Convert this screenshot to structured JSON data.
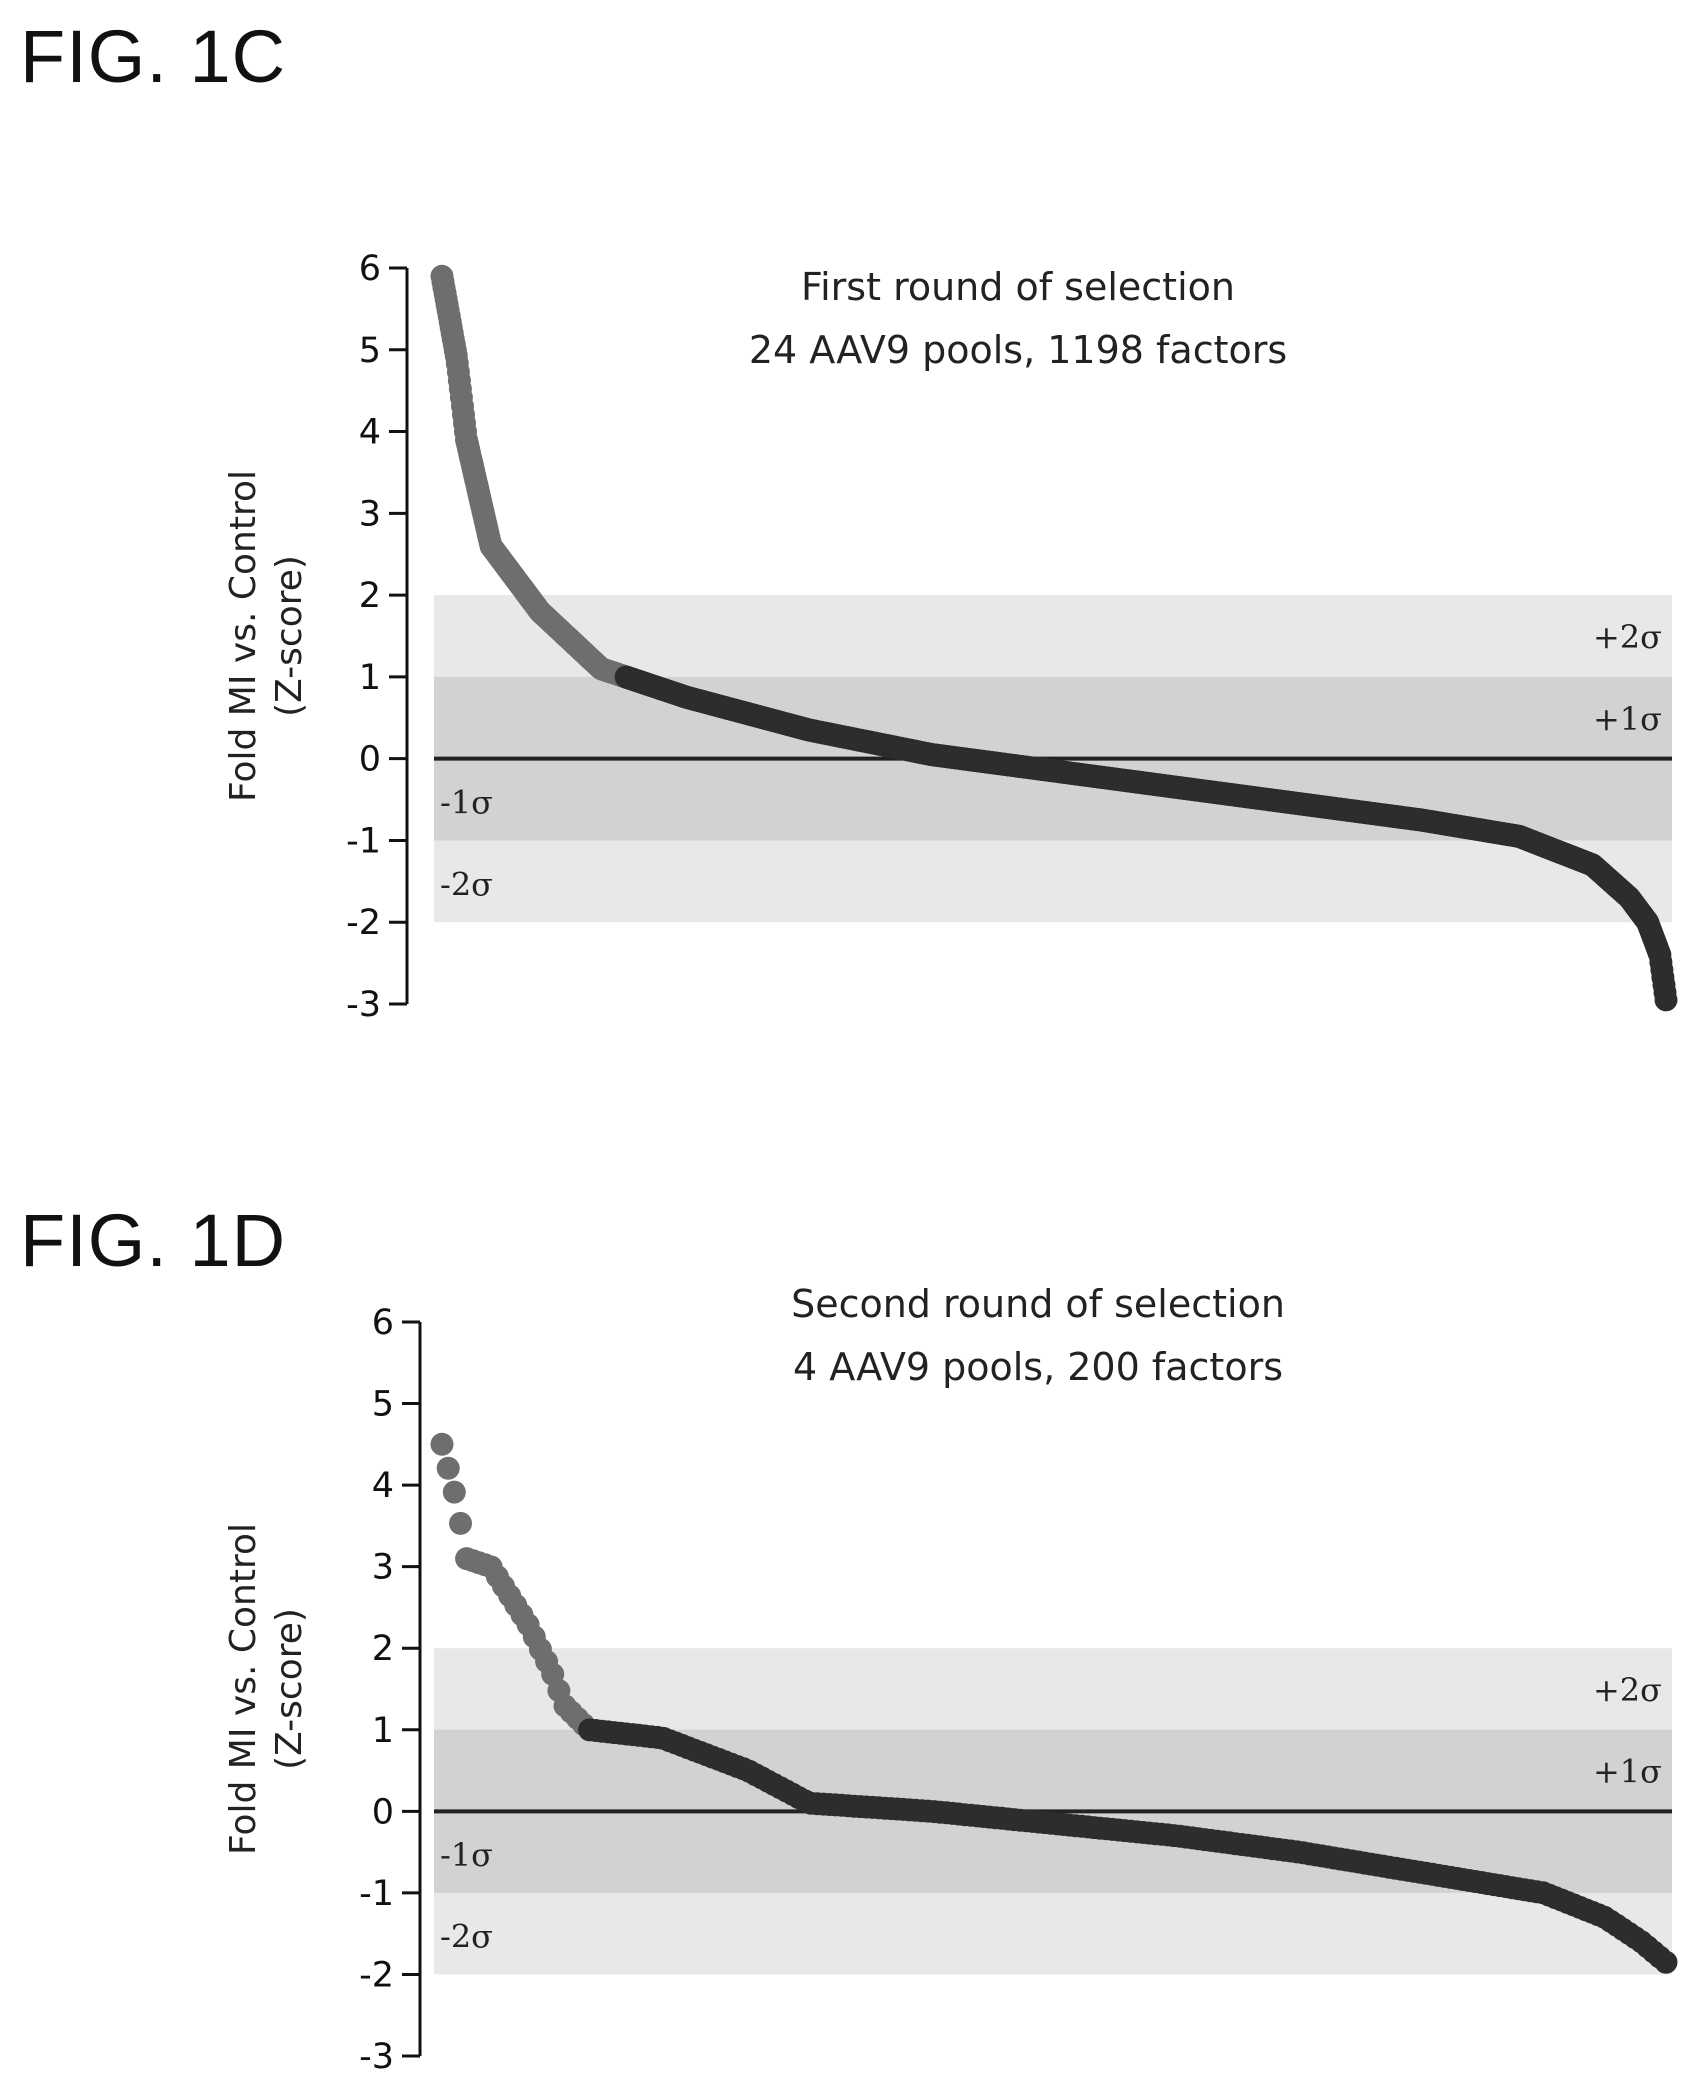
{
  "figures": [
    {
      "label": "FIG. 1C"
    },
    {
      "label": "FIG. 1D"
    }
  ],
  "chart_data": [
    {
      "type": "scatter",
      "title": "First round of selection",
      "subtitle": "24 AAV9 pools, 1198 factors",
      "ylabel": "Fold MI vs. Control",
      "ylabel2": "(Z-score)",
      "ylim": [
        -3,
        6
      ],
      "yticks": [
        "6",
        "5",
        "4",
        "3",
        "2",
        "1",
        "0",
        "-1",
        "-2",
        "-3"
      ],
      "bands": [
        {
          "label": "+2σ",
          "from": -2,
          "to": 2
        },
        {
          "label": "+1σ",
          "from": -1,
          "to": 1
        }
      ],
      "band_labels_low": [
        "-1σ",
        "-2σ"
      ],
      "sorted_values_profile": {
        "points": 1198,
        "anchors": [
          [
            0,
            5.9
          ],
          [
            0.012,
            4.9
          ],
          [
            0.02,
            3.9
          ],
          [
            0.04,
            2.6
          ],
          [
            0.08,
            1.8
          ],
          [
            0.13,
            1.1
          ],
          [
            0.2,
            0.75
          ],
          [
            0.3,
            0.35
          ],
          [
            0.4,
            0.05
          ],
          [
            0.5,
            -0.15
          ],
          [
            0.6,
            -0.35
          ],
          [
            0.7,
            -0.55
          ],
          [
            0.8,
            -0.75
          ],
          [
            0.88,
            -0.95
          ],
          [
            0.94,
            -1.3
          ],
          [
            0.97,
            -1.7
          ],
          [
            0.985,
            -2.0
          ],
          [
            0.995,
            -2.4
          ],
          [
            1.0,
            -2.95
          ]
        ]
      },
      "highlight_above": 1,
      "colors": {
        "high": "#6e6e6e",
        "low": "#2d2d2d",
        "band_outer": "#e8e8e8",
        "band_inner": "#d2d2d2"
      }
    },
    {
      "type": "scatter",
      "title": "Second round of selection",
      "subtitle": "4 AAV9 pools, 200 factors",
      "ylabel": "Fold MI vs. Control",
      "ylabel2": "(Z-score)",
      "ylim": [
        -3,
        6
      ],
      "yticks": [
        "6",
        "5",
        "4",
        "3",
        "2",
        "1",
        "0",
        "-1",
        "-2",
        "-3"
      ],
      "bands": [
        {
          "label": "+2σ",
          "from": -2,
          "to": 2
        },
        {
          "label": "+1σ",
          "from": -1,
          "to": 1
        }
      ],
      "band_labels_low": [
        "-1σ",
        "-2σ"
      ],
      "sorted_values_profile": {
        "points": 200,
        "anchors": [
          [
            0,
            4.5
          ],
          [
            0.012,
            3.8
          ],
          [
            0.02,
            3.1
          ],
          [
            0.04,
            3.0
          ],
          [
            0.07,
            2.3
          ],
          [
            0.09,
            1.7
          ],
          [
            0.1,
            1.3
          ],
          [
            0.12,
            1.0
          ],
          [
            0.18,
            0.9
          ],
          [
            0.25,
            0.5
          ],
          [
            0.3,
            0.1
          ],
          [
            0.4,
            0.0
          ],
          [
            0.5,
            -0.15
          ],
          [
            0.6,
            -0.3
          ],
          [
            0.7,
            -0.5
          ],
          [
            0.8,
            -0.75
          ],
          [
            0.9,
            -1.0
          ],
          [
            0.95,
            -1.3
          ],
          [
            0.98,
            -1.6
          ],
          [
            1.0,
            -1.85
          ]
        ]
      },
      "highlight_above": 1,
      "colors": {
        "high": "#6e6e6e",
        "low": "#2d2d2d",
        "band_outer": "#e8e8e8",
        "band_inner": "#d2d2d2"
      }
    }
  ]
}
